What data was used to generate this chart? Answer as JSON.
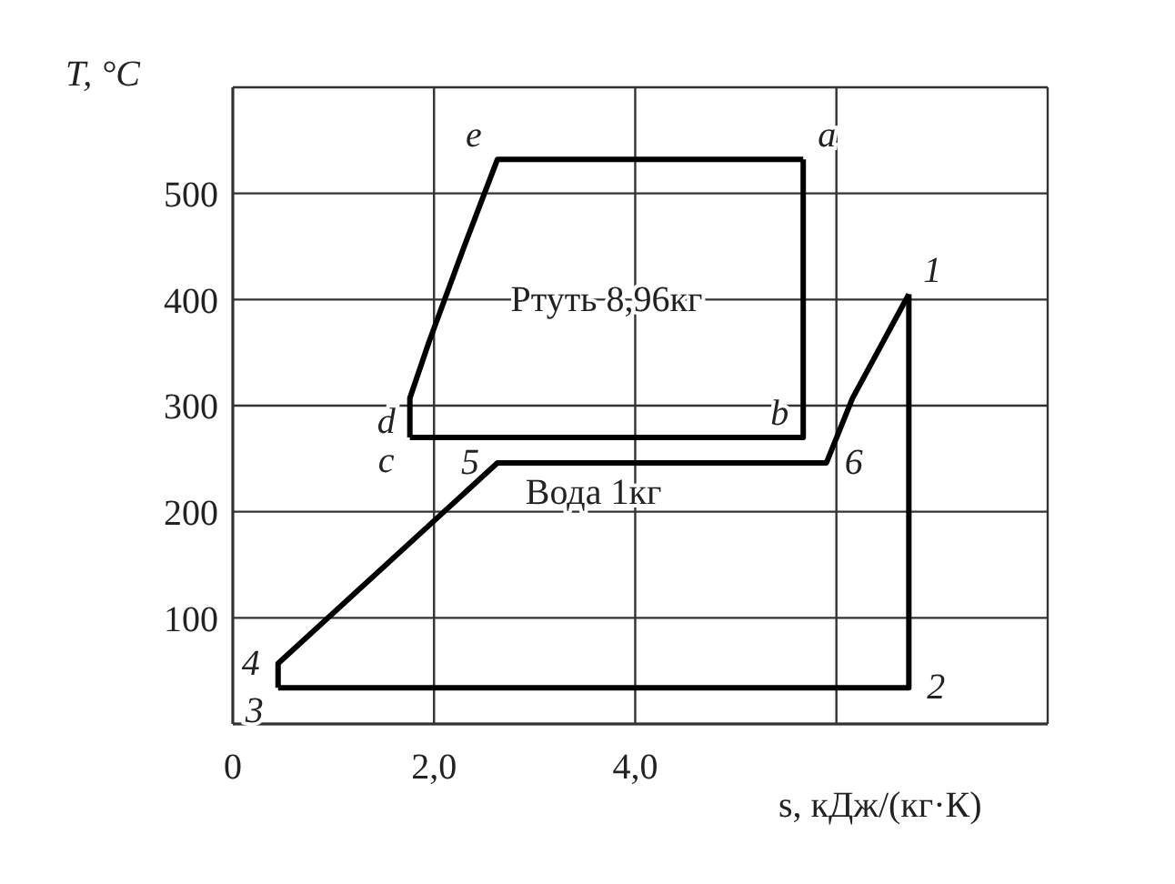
{
  "chart_data": {
    "type": "line",
    "xlabel": "s, кДж/(кг·К)",
    "ylabel": "T, °C",
    "xlim": [
      0,
      8.1
    ],
    "xticks": [
      {
        "value": 0,
        "label": "0"
      },
      {
        "value": 2,
        "label": "2,0"
      },
      {
        "value": 4,
        "label": "4,0"
      },
      {
        "value": 6,
        "label": null
      }
    ],
    "ylim": [
      0,
      600
    ],
    "yticks": [
      100,
      200,
      300,
      400,
      500
    ],
    "grid": true,
    "marker": "none",
    "line_style": "solid",
    "series": [
      {
        "name": "Ртуть 8,96кг",
        "color": "#000000",
        "x": [
          1.76,
          1.76,
          1.95,
          2.3,
          2.63,
          5.67
        ],
        "values": [
          270,
          307,
          360,
          450,
          532,
          532
        ]
      },
      {
        "color": "#000000",
        "x": [
          1.76,
          5.67,
          5.67
        ],
        "values": [
          270,
          270,
          532
        ]
      },
      {
        "name": "Вода 1кг",
        "color": "#000000",
        "x": [
          0.45,
          0.45,
          2.63,
          5.9,
          6.16,
          6.72
        ],
        "values": [
          34,
          57,
          246,
          246,
          307,
          405
        ]
      },
      {
        "color": "#000000",
        "x": [
          0.45,
          6.72,
          6.72
        ],
        "values": [
          34,
          34,
          405
        ]
      }
    ],
    "annotations": [
      {
        "text": "e",
        "x": 2.63,
        "y": 532
      },
      {
        "text": "a",
        "x": 5.67,
        "y": 532
      },
      {
        "text": "b",
        "x": 5.67,
        "y": 270
      },
      {
        "text": "c",
        "x": 1.76,
        "y": 270
      },
      {
        "text": "d",
        "x": 1.76,
        "y": 307
      },
      {
        "text": "5",
        "x": 2.63,
        "y": 246
      },
      {
        "text": "6",
        "x": 5.9,
        "y": 246
      },
      {
        "text": "1",
        "x": 6.72,
        "y": 405
      },
      {
        "text": "2",
        "x": 6.72,
        "y": 34
      },
      {
        "text": "4",
        "x": 0.45,
        "y": 57
      },
      {
        "text": "3",
        "x": 0.45,
        "y": 34
      }
    ]
  }
}
